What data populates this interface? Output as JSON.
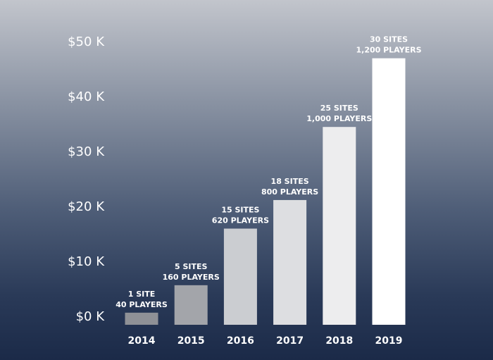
{
  "chart_data": {
    "type": "bar",
    "categories": [
      "2014",
      "2015",
      "2016",
      "2017",
      "2018",
      "2019"
    ],
    "values": [
      2.2,
      7.2,
      17.5,
      22.7,
      36.0,
      48.5
    ],
    "data_labels": [
      [
        "1 SITE",
        "40 PLAYERS"
      ],
      [
        "5 SITES",
        "160 PLAYERS"
      ],
      [
        "15 SITES",
        "620 PLAYERS"
      ],
      [
        "18 SITES",
        "800 PLAYERS"
      ],
      [
        "25 SITES",
        "1,000 PLAYERS"
      ],
      [
        "30 SITES",
        "1,200 PLAYERS"
      ]
    ],
    "yticks": [
      0,
      10,
      20,
      30,
      40,
      50
    ],
    "ytick_labels": [
      "$0 K",
      "$10 K",
      "$20 K",
      "$30 K",
      "$40 K",
      "$50 K"
    ],
    "ylim": [
      0,
      50
    ],
    "grid": false,
    "colors": {
      "bars": [
        "#8f9196",
        "#a3a5aa",
        "#cbcdd1",
        "#dddee1",
        "#ededee",
        "#ffffff"
      ],
      "text": "#ffffff"
    }
  }
}
